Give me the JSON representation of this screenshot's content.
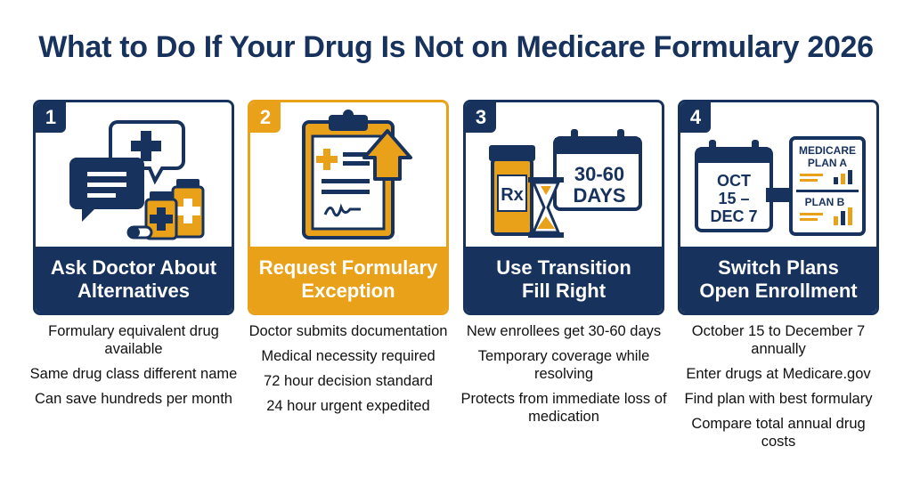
{
  "title": "What to Do If Your Drug Is Not on Medicare Formulary 2026",
  "colors": {
    "navy": "#17325c",
    "gold": "#e9a11a",
    "white": "#ffffff"
  },
  "steps": [
    {
      "number": "1",
      "heading_line1": "Ask Doctor About",
      "heading_line2": "Alternatives",
      "icon": "chat-bubbles-pill-bottles-icon",
      "bullets": [
        "Formulary equivalent drug available",
        "Same drug class different name",
        "Can save hundreds per month"
      ]
    },
    {
      "number": "2",
      "heading_line1": "Request Formulary",
      "heading_line2": "Exception",
      "icon": "clipboard-upload-icon",
      "bullets": [
        "Doctor submits documentation",
        "Medical necessity required",
        "72 hour decision standard",
        "24 hour urgent expedited"
      ]
    },
    {
      "number": "3",
      "heading_line1": "Use Transition",
      "heading_line2": "Fill Right",
      "icon": "rx-bottle-hourglass-calendar-icon",
      "calendar_line1": "30-60",
      "calendar_line2": "DAYS",
      "rx_label": "Rx",
      "bullets": [
        "New enrollees get 30-60 days",
        "Temporary coverage while resolving",
        "Protects from immediate loss of medication"
      ]
    },
    {
      "number": "4",
      "heading_line1": "Switch Plans",
      "heading_line2": "Open Enrollment",
      "icon": "calendar-arrow-plan-compare-icon",
      "calendar_line1": "OCT",
      "calendar_line2": "15 –",
      "calendar_line3": "DEC 7",
      "plan_a_line1": "MEDICARE",
      "plan_a_line2": "PLAN A",
      "plan_b": "PLAN B",
      "bullets": [
        "October 15 to December 7 annually",
        "Enter drugs at Medicare.gov",
        "Find plan with best formulary",
        "Compare total annual drug costs"
      ]
    }
  ]
}
